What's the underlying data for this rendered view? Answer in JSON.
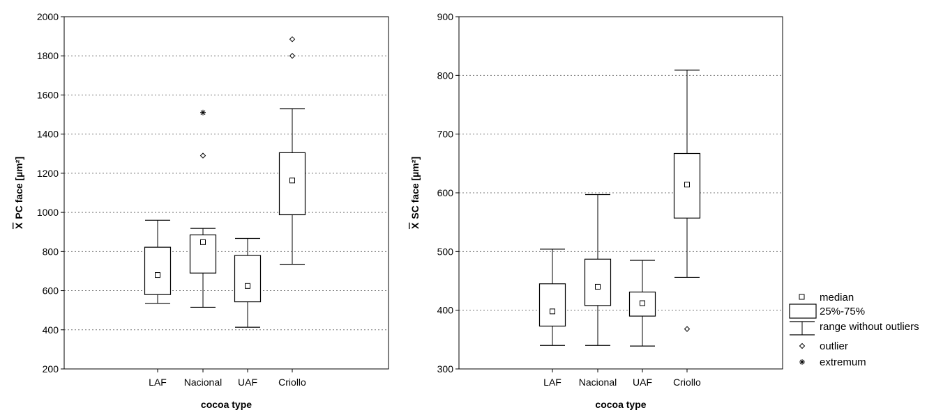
{
  "chart_data": [
    {
      "type": "box",
      "title": "",
      "xlabel": "cocoa type",
      "ylabel_prefix": "X",
      "ylabel": "PC face [µm²]",
      "ylim": [
        200,
        2000
      ],
      "yticks": [
        "200",
        "400",
        "600",
        "800",
        "1000",
        "1200",
        "1400",
        "1600",
        "1800",
        "2000"
      ],
      "grid": true,
      "categories": [
        "LAF",
        "Nacional",
        "UAF",
        "Criollo"
      ],
      "boxes": [
        {
          "category": "LAF",
          "whisker_low": 535,
          "q1": 580,
          "median": 680,
          "q3": 822,
          "whisker_high": 960,
          "outliers": [],
          "extremes": []
        },
        {
          "category": "Nacional",
          "whisker_low": 515,
          "q1": 690,
          "median": 848,
          "q3": 885,
          "whisker_high": 918,
          "outliers": [
            1290
          ],
          "extremes": [
            1510
          ]
        },
        {
          "category": "UAF",
          "whisker_low": 413,
          "q1": 543,
          "median": 624,
          "q3": 780,
          "whisker_high": 867,
          "outliers": [],
          "extremes": []
        },
        {
          "category": "Criollo",
          "whisker_low": 735,
          "q1": 988,
          "median": 1163,
          "q3": 1305,
          "whisker_high": 1530,
          "outliers": [
            1800,
            1885
          ],
          "extremes": []
        }
      ]
    },
    {
      "type": "box",
      "title": "",
      "xlabel": "cocoa type",
      "ylabel_prefix": "X",
      "ylabel": "SC face [µm²]",
      "ylim": [
        300,
        900
      ],
      "yticks": [
        "300",
        "400",
        "500",
        "600",
        "700",
        "800",
        "900"
      ],
      "grid": true,
      "categories": [
        "LAF",
        "Nacional",
        "UAF",
        "Criollo"
      ],
      "boxes": [
        {
          "category": "LAF",
          "whisker_low": 340,
          "q1": 373,
          "median": 398,
          "q3": 445,
          "whisker_high": 504,
          "outliers": [],
          "extremes": []
        },
        {
          "category": "Nacional",
          "whisker_low": 340,
          "q1": 408,
          "median": 440,
          "q3": 487,
          "whisker_high": 597,
          "outliers": [],
          "extremes": []
        },
        {
          "category": "UAF",
          "whisker_low": 339,
          "q1": 390,
          "median": 412,
          "q3": 431,
          "whisker_high": 485,
          "outliers": [],
          "extremes": []
        },
        {
          "category": "Criollo",
          "whisker_low": 456,
          "q1": 557,
          "median": 614,
          "q3": 667,
          "whisker_high": 809,
          "outliers": [
            368
          ],
          "extremes": []
        }
      ]
    }
  ],
  "legend": {
    "placement": "right",
    "items": [
      {
        "symbol": "median",
        "label": "median"
      },
      {
        "symbol": "box",
        "label": "25%-75%"
      },
      {
        "symbol": "whisker",
        "label": "range without outliers"
      },
      {
        "symbol": "outlier",
        "label": "outlier"
      },
      {
        "symbol": "extremum",
        "label": "extremum"
      }
    ]
  }
}
